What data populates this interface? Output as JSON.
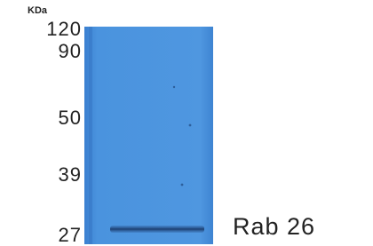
{
  "unit_label": "KDa",
  "markers": [
    "120",
    "90",
    "50",
    "39",
    "27"
  ],
  "band_label": "Rab 26"
}
